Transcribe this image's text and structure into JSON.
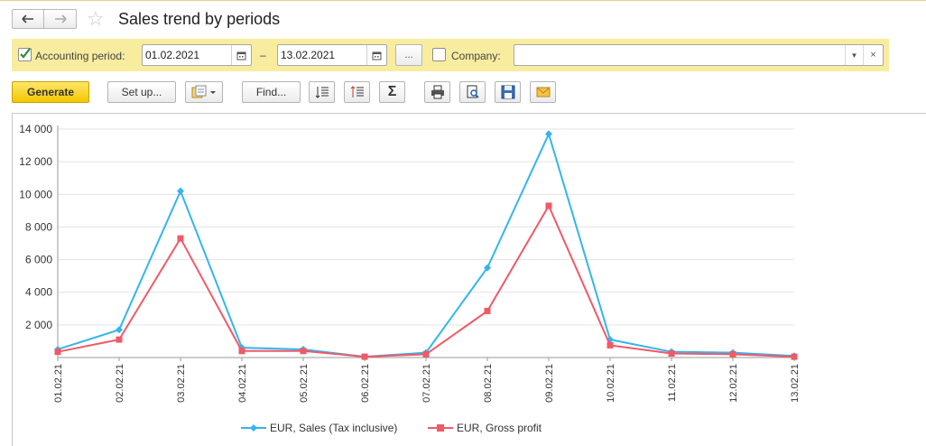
{
  "window": {
    "title": "Sales trend by periods"
  },
  "filters": {
    "period_label": "Accounting period:",
    "period_checked": true,
    "date_from": "01.02.2021",
    "dash": "–",
    "date_to": "13.02.2021",
    "choose_period_label": "...",
    "company_label": "Company:",
    "company_checked": false,
    "company_value": ""
  },
  "toolbar": {
    "generate_label": "Generate",
    "setup_label": "Set up...",
    "find_label": "Find...",
    "sum_symbol": "Σ"
  },
  "colors": {
    "accent_yellow": "#f2c700",
    "filter_bg": "#f8ec9f",
    "sales_series": "#33b5ee",
    "profit_series": "#ef5a67"
  },
  "chart_data": {
    "type": "line",
    "x": [
      "01.02.21",
      "02.02.21",
      "03.02.21",
      "04.02.21",
      "05.02.21",
      "06.02.21",
      "07.02.21",
      "08.02.21",
      "09.02.21",
      "10.02.21",
      "11.02.21",
      "12.02.21",
      "13.02.21"
    ],
    "yticks": [
      "14 000",
      "12 000",
      "10 000",
      "8 000",
      "6 000",
      "4 000",
      "2 000"
    ],
    "ylim": [
      0,
      14000
    ],
    "grid": true,
    "legend_position": "bottom",
    "series": [
      {
        "name": "EUR, Sales (Tax inclusive)",
        "marker": "diamond",
        "values": [
          500,
          1700,
          10200,
          600,
          500,
          50,
          300,
          5500,
          13700,
          1100,
          350,
          300,
          100
        ]
      },
      {
        "name": "EUR, Gross profit",
        "marker": "square",
        "values": [
          350,
          1100,
          7300,
          400,
          400,
          50,
          200,
          2850,
          9300,
          750,
          250,
          200,
          50
        ]
      }
    ]
  }
}
